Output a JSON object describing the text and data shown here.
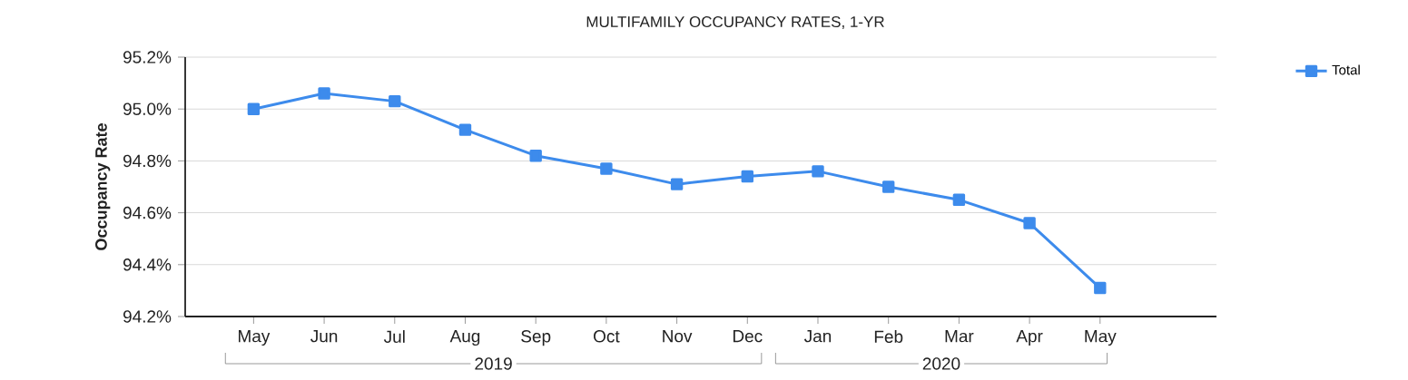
{
  "chart_data": {
    "type": "line",
    "title": "MULTIFAMILY OCCUPANCY RATES, 1-YR",
    "ylabel": "Occupancy Rate",
    "categories": [
      "May",
      "Jun",
      "Jul",
      "Aug",
      "Sep",
      "Oct",
      "Nov",
      "Dec",
      "Jan",
      "Feb",
      "Mar",
      "Apr",
      "May"
    ],
    "series": [
      {
        "name": "Total",
        "color": "#3d8bec",
        "values": [
          95.0,
          95.06,
          95.03,
          94.92,
          94.82,
          94.77,
          94.71,
          94.74,
          94.76,
          94.7,
          94.65,
          94.56,
          94.31
        ]
      }
    ],
    "ylim": [
      94.2,
      95.2
    ],
    "yticks": [
      {
        "value": 94.2,
        "label": "94.2%"
      },
      {
        "value": 94.4,
        "label": "94.4%"
      },
      {
        "value": 94.6,
        "label": "94.6%"
      },
      {
        "value": 94.8,
        "label": "94.8%"
      },
      {
        "value": 95.0,
        "label": "95.0%"
      },
      {
        "value": 95.2,
        "label": "95.2%"
      }
    ],
    "annotations": [
      "2019",
      "2020"
    ],
    "grid": "y",
    "legend": "top right",
    "marker": "square",
    "line_style": "solid"
  }
}
